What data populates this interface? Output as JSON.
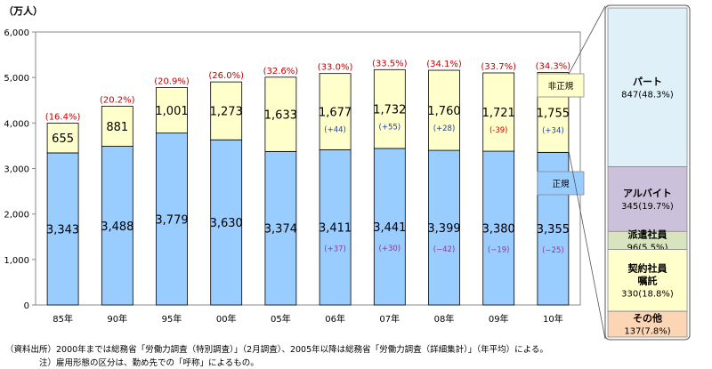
{
  "chart_data": [
    {
      "type": "bar",
      "stacked": true,
      "unit_label": "（万人）",
      "categories": [
        "85年",
        "90年",
        "95年",
        "00年",
        "05年",
        "06年",
        "07年",
        "08年",
        "09年",
        "10年"
      ],
      "ylim": [
        0,
        6000
      ],
      "yticks": [
        "0",
        "1,000",
        "2,000",
        "3,000",
        "4,000",
        "5,000",
        "6,000"
      ],
      "ytick_values": [
        0,
        1000,
        2000,
        3000,
        4000,
        5000,
        6000
      ],
      "grid": false,
      "series": [
        {
          "name": "正規",
          "color": "#99ccff",
          "values": [
            3343,
            3488,
            3779,
            3630,
            3374,
            3411,
            3441,
            3399,
            3380,
            3355
          ],
          "value_labels": [
            "3,343",
            "3,488",
            "3,779",
            "3,630",
            "3,374",
            "3,411",
            "3,441",
            "3,399",
            "3,380",
            "3,355"
          ],
          "change_labels": [
            "",
            "",
            "",
            "",
            "",
            "(+37)",
            "(+30)",
            "(−42)",
            "(−19)",
            "(−25)"
          ]
        },
        {
          "name": "非正規",
          "color": "#ffffcc",
          "values": [
            655,
            881,
            1001,
            1273,
            1633,
            1677,
            1732,
            1760,
            1721,
            1755
          ],
          "value_labels": [
            "655",
            "881",
            "1,001",
            "1,273",
            "1,633",
            "1,677",
            "1,732",
            "1,760",
            "1,721",
            "1,755"
          ],
          "change_labels": [
            "",
            "",
            "",
            "",
            "",
            "(+44)",
            "(+55)",
            "(+28)",
            "(-39)",
            "(+34)"
          ],
          "change_colors": [
            "",
            "",
            "",
            "",
            "",
            "#1f3f99",
            "#1f3f99",
            "#1f3f99",
            "#cc0000",
            "#1f3f99"
          ]
        }
      ],
      "share_labels": [
        "(16.4%)",
        "(20.2%)",
        "(20.9%)",
        "(26.0%)",
        "(32.6%)",
        "(33.0%)",
        "(33.5%)",
        "(34.1%)",
        "(33.7%)",
        "(34.3%)"
      ],
      "legend_boxes": [
        {
          "label": "非正規",
          "color": "#ffffcc"
        },
        {
          "label": "正規",
          "color": "#99ccff"
        }
      ]
    },
    {
      "type": "bar",
      "stacked": true,
      "segments": [
        {
          "name": "パート",
          "value": 847,
          "label": "847(48.3%)",
          "color": "#dff0f8"
        },
        {
          "name": "アルバイト",
          "value": 345,
          "label": "345(19.7%)",
          "color": "#ccc1da"
        },
        {
          "name": "派遣社員",
          "value": 96,
          "label": "96(5.5%)",
          "color": "#d7e4bd"
        },
        {
          "name": "契約社員\n嘱託",
          "value": 330,
          "label": "330(18.8%)",
          "color": "#ffffcc"
        },
        {
          "name": "その他",
          "value": 137,
          "label": "137(7.8%)",
          "color": "#fcd5b5"
        }
      ]
    }
  ],
  "footnotes": [
    "（資料出所）2000年までは総務省「労働力調査（特別調査）」（2月調査）、2005年以降は総務省「労働力調査（詳細集計）」（年平均）による。",
    "注）雇用形態の区分は、勤め先での「呼称」によるもの。"
  ]
}
